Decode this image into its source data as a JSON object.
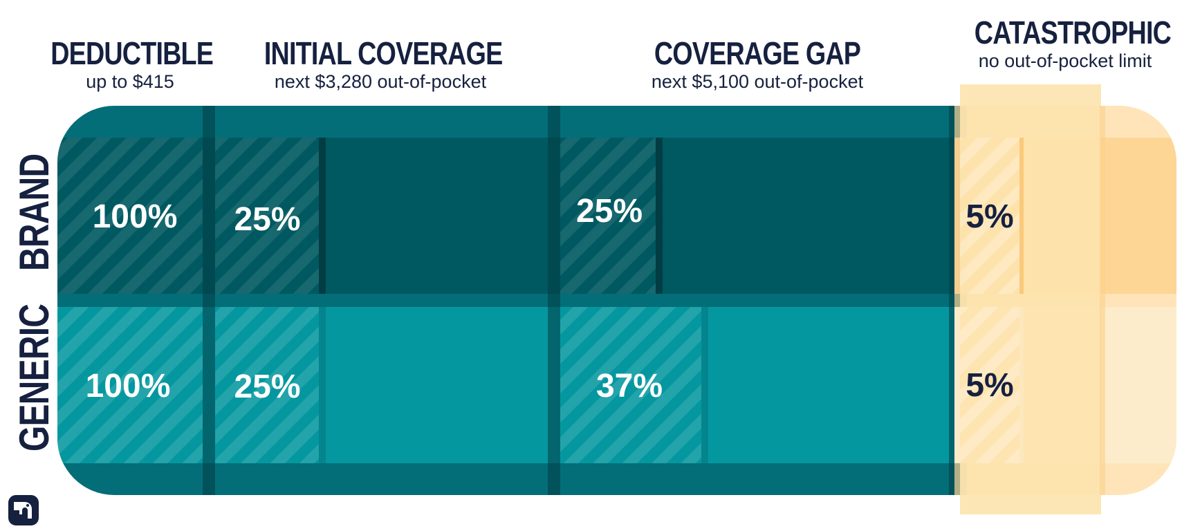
{
  "colors": {
    "frame": "#036e78",
    "brand_row": "#005961",
    "generic_row": "#05979f",
    "divider": "#023d43",
    "catastrophic_bar": "#fde3ae",
    "catastrophic_frame": "#fdd99a",
    "text_dark": "#16203f",
    "text_light": "#ffffff"
  },
  "phases": [
    {
      "id": "deductible",
      "title": "DEDUCTIBLE",
      "subtitle": "up to $415"
    },
    {
      "id": "initial",
      "title": "INITIAL COVERAGE",
      "subtitle": "next $3,280 out-of-pocket"
    },
    {
      "id": "gap",
      "title": "COVERAGE GAP",
      "subtitle": "next $5,100 out-of-pocket"
    },
    {
      "id": "catastrophic",
      "title": "CATASTROPHIC",
      "subtitle": "no out-of-pocket limit"
    }
  ],
  "rows": [
    {
      "id": "brand",
      "label": "BRAND",
      "shares": [
        {
          "phase": "deductible",
          "pct": "100%",
          "value": 100
        },
        {
          "phase": "initial",
          "pct": "25%",
          "value": 25
        },
        {
          "phase": "gap",
          "pct": "25%",
          "value": 25
        },
        {
          "phase": "catastrophic",
          "pct": "5%",
          "value": 5
        }
      ]
    },
    {
      "id": "generic",
      "label": "GENERIC",
      "shares": [
        {
          "phase": "deductible",
          "pct": "100%",
          "value": 100
        },
        {
          "phase": "initial",
          "pct": "25%",
          "value": 25
        },
        {
          "phase": "gap",
          "pct": "37%",
          "value": 37
        },
        {
          "phase": "catastrophic",
          "pct": "5%",
          "value": 5
        }
      ]
    }
  ],
  "logo": {
    "icon": "elephant-icon"
  }
}
